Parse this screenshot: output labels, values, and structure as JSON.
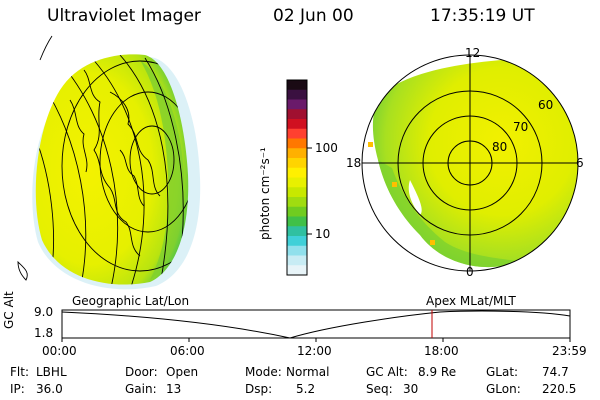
{
  "header": {
    "instrument": "Ultraviolet Imager",
    "date": "02 Jun 00",
    "time": "17:35:19 UT"
  },
  "colorbar": {
    "unit_label": "photon cm⁻²s⁻¹",
    "tick_100": "100",
    "tick_10": "10",
    "colors_top_to_bottom": [
      "#1a0a14",
      "#3a1040",
      "#6a1a6a",
      "#a01030",
      "#d01020",
      "#ff4030",
      "#ff7800",
      "#ffb000",
      "#ffd400",
      "#fff000",
      "#e8f000",
      "#c8e800",
      "#a0dc10",
      "#70cc20",
      "#40c048",
      "#30c0a0",
      "#40d0d8",
      "#90e0ec",
      "#c8ecf4",
      "#e8f4f8"
    ]
  },
  "polar_plot": {
    "mlt_12": "12",
    "mlt_18": "18",
    "mlt_6": "6",
    "mlt_0": "0",
    "lat_60": "60",
    "lat_70": "70",
    "lat_80": "80"
  },
  "projections": {
    "left": "Geographic Lat/Lon",
    "right": "Apex MLat/MLT"
  },
  "altitude_plot": {
    "ylabel": "GC Alt",
    "y_high": "9.0",
    "y_low": "1.8",
    "time_ticks": [
      "00:00",
      "06:00",
      "12:00",
      "18:00",
      "23:59"
    ],
    "marker_color": "#c00000"
  },
  "info": {
    "flt_label": "Flt:",
    "flt_value": "LBHL",
    "door_label": "Door:",
    "door_value": "Open",
    "mode_label": "Mode:",
    "mode_value": "Normal",
    "gcalt_label": "GC Alt:",
    "gcalt_value": "8.9 Re",
    "glat_label": "GLat:",
    "glat_value": "74.7",
    "ip_label": "IP:",
    "ip_value": "36.0",
    "gain_label": "Gain:",
    "gain_value": "13",
    "dsp_label": "Dsp:",
    "dsp_value": "5.2",
    "seq_label": "Seq:",
    "seq_value": "30",
    "glon_label": "GLon:",
    "glon_value": "220.5"
  }
}
